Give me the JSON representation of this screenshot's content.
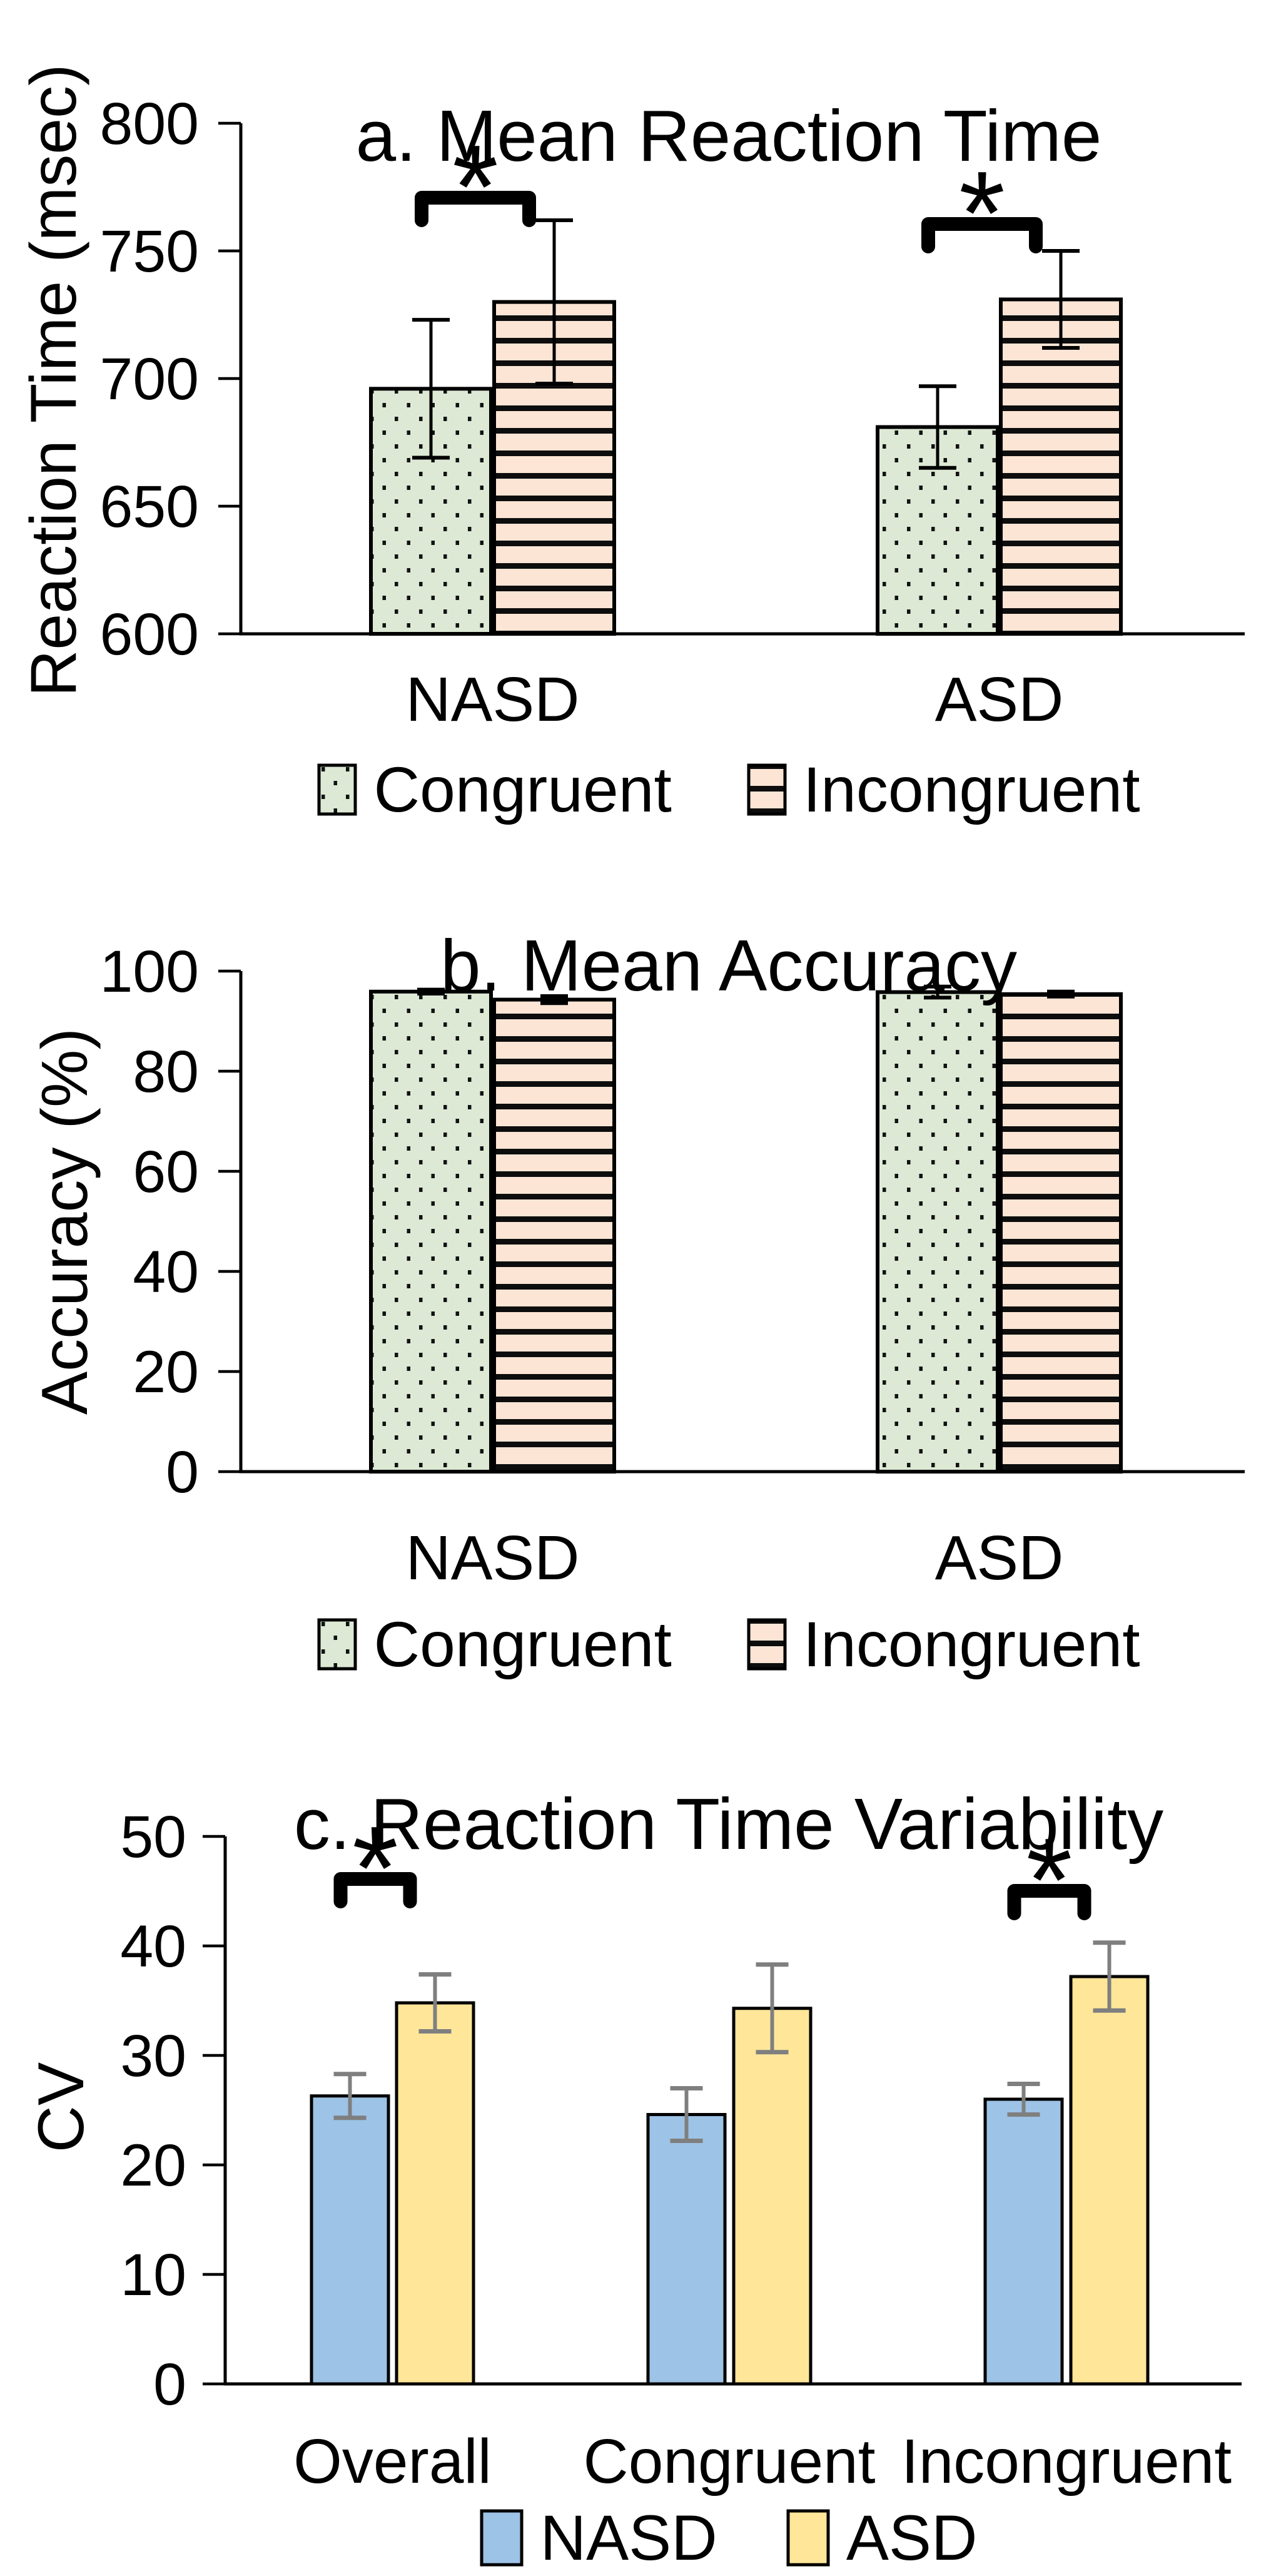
{
  "figure_type": "three-panel bar chart figure",
  "colors": {
    "background": "#FFFFFF",
    "congruent_fill": "#DDE9D5",
    "incongruent_fill": "#FCE5D5",
    "pattern_ink": "#111111",
    "nasd_fill": "#9DC3E6",
    "asd_fill": "#FFE699",
    "axis_color": "#000000",
    "error_bar_dark": "#000000",
    "error_bar_gray": "#7F7F7F"
  },
  "chart_data": [
    {
      "id": "a",
      "type": "bar",
      "title": "a. Mean Reaction Time",
      "ylabel": "Reaction Time (msec)",
      "xlabel": "",
      "ylim": [
        600,
        800
      ],
      "yticks": [
        600,
        650,
        700,
        750,
        800
      ],
      "grid": false,
      "legend_position": "bottom",
      "categories": [
        "NASD",
        "ASD"
      ],
      "series": [
        {
          "name": "Congruent",
          "pattern": "dots",
          "values": [
            696,
            681
          ],
          "errors": [
            27,
            16
          ]
        },
        {
          "name": "Incongruent",
          "pattern": "stripes",
          "values": [
            730,
            731
          ],
          "errors": [
            32,
            19
          ]
        }
      ],
      "significance": [
        {
          "category": "NASD",
          "between": [
            "Congruent",
            "Incongruent"
          ],
          "symbol": "*"
        },
        {
          "category": "ASD",
          "between": [
            "Congruent",
            "Incongruent"
          ],
          "symbol": "*"
        }
      ]
    },
    {
      "id": "b",
      "type": "bar",
      "title": "b. Mean Accuracy",
      "ylabel": "Accuracy (%)",
      "xlabel": "",
      "ylim": [
        0,
        100
      ],
      "yticks": [
        0,
        20,
        40,
        60,
        80,
        100
      ],
      "grid": false,
      "legend_position": "bottom",
      "categories": [
        "NASD",
        "ASD"
      ],
      "series": [
        {
          "name": "Congruent",
          "pattern": "dots",
          "values": [
            95.9,
            95.8
          ],
          "errors": [
            0.4,
            1.1
          ]
        },
        {
          "name": "Incongruent",
          "pattern": "stripes",
          "values": [
            94.3,
            95.4
          ],
          "errors": [
            0.7,
            0.5
          ]
        }
      ],
      "significance": []
    },
    {
      "id": "c",
      "type": "bar",
      "title": "c. Reaction Time Variability",
      "ylabel": "CV",
      "xlabel": "",
      "ylim": [
        0,
        50
      ],
      "yticks": [
        0,
        10,
        20,
        30,
        40,
        50
      ],
      "grid": false,
      "legend_position": "bottom",
      "categories": [
        "Overall",
        "Congruent",
        "Incongruent"
      ],
      "series": [
        {
          "name": "NASD",
          "pattern": "solid-blue",
          "values": [
            26.3,
            24.6,
            26.0
          ],
          "errors": [
            2.0,
            2.4,
            1.4
          ]
        },
        {
          "name": "ASD",
          "pattern": "solid-yellow",
          "values": [
            34.8,
            34.3,
            37.2
          ],
          "errors": [
            2.6,
            4.0,
            3.1
          ]
        }
      ],
      "significance": [
        {
          "category": "Overall",
          "between": [
            "NASD",
            "ASD"
          ],
          "symbol": "*"
        },
        {
          "category": "Incongruent",
          "between": [
            "NASD",
            "ASD"
          ],
          "symbol": "*"
        }
      ]
    }
  ]
}
